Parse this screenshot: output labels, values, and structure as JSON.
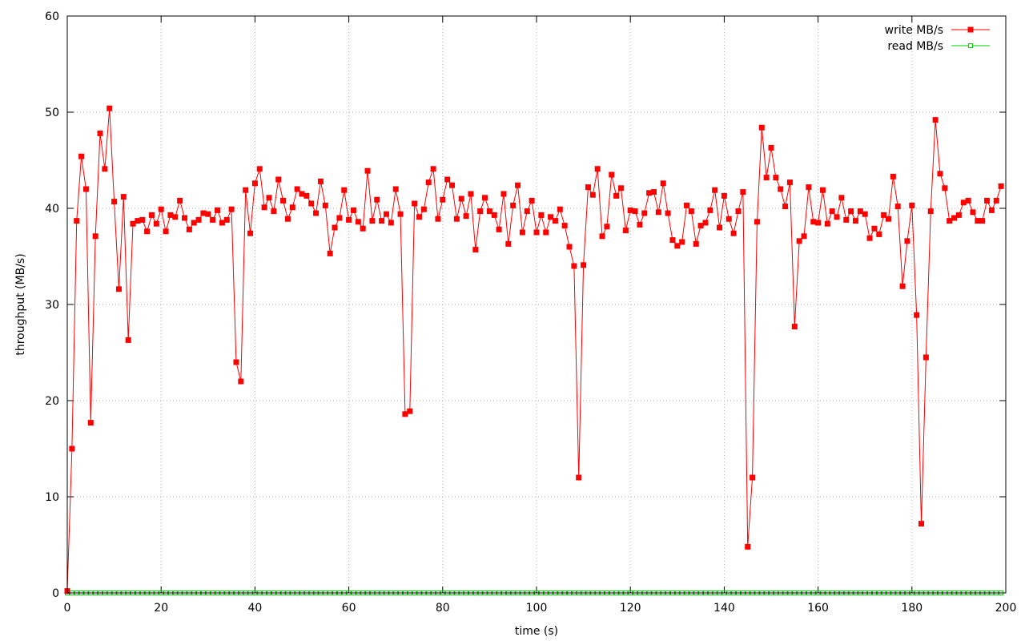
{
  "chart_data": {
    "type": "line",
    "title": "",
    "xlabel": "time (s)",
    "ylabel": "throughput (MB/s)",
    "xlim": [
      0,
      200
    ],
    "ylim": [
      0,
      60
    ],
    "xticks": [
      0,
      20,
      40,
      60,
      80,
      100,
      120,
      140,
      160,
      180,
      200
    ],
    "yticks": [
      0,
      10,
      20,
      30,
      40,
      50,
      60
    ],
    "grid": true,
    "legend_position": "top-right",
    "x": [
      0,
      1,
      2,
      3,
      4,
      5,
      6,
      7,
      8,
      9,
      10,
      11,
      12,
      13,
      14,
      15,
      16,
      17,
      18,
      19,
      20,
      21,
      22,
      23,
      24,
      25,
      26,
      27,
      28,
      29,
      30,
      31,
      32,
      33,
      34,
      35,
      36,
      37,
      38,
      39,
      40,
      41,
      42,
      43,
      44,
      45,
      46,
      47,
      48,
      49,
      50,
      51,
      52,
      53,
      54,
      55,
      56,
      57,
      58,
      59,
      60,
      61,
      62,
      63,
      64,
      65,
      66,
      67,
      68,
      69,
      70,
      71,
      72,
      73,
      74,
      75,
      76,
      77,
      78,
      79,
      80,
      81,
      82,
      83,
      84,
      85,
      86,
      87,
      88,
      89,
      90,
      91,
      92,
      93,
      94,
      95,
      96,
      97,
      98,
      99,
      100,
      101,
      102,
      103,
      104,
      105,
      106,
      107,
      108,
      109,
      110,
      111,
      112,
      113,
      114,
      115,
      116,
      117,
      118,
      119,
      120,
      121,
      122,
      123,
      124,
      125,
      126,
      127,
      128,
      129,
      130,
      131,
      132,
      133,
      134,
      135,
      136,
      137,
      138,
      139,
      140,
      141,
      142,
      143,
      144,
      145,
      146,
      147,
      148,
      149,
      150,
      151,
      152,
      153,
      154,
      155,
      156,
      157,
      158,
      159,
      160,
      161,
      162,
      163,
      164,
      165,
      166,
      167,
      168,
      169,
      170,
      171,
      172,
      173,
      174,
      175,
      176,
      177,
      178,
      179,
      180,
      181,
      182,
      183,
      184,
      185,
      186,
      187,
      188,
      189,
      190,
      191,
      192,
      193,
      194,
      195,
      196,
      197,
      198,
      199
    ],
    "series": [
      {
        "name": "write MB/s",
        "color": "#ff0000",
        "marker": "filled-square",
        "values": [
          0.2,
          15.0,
          38.7,
          45.4,
          42.0,
          17.7,
          37.1,
          47.8,
          44.1,
          50.4,
          40.7,
          31.6,
          41.2,
          26.3,
          38.4,
          38.7,
          38.8,
          37.6,
          39.3,
          38.4,
          39.9,
          37.6,
          39.3,
          39.1,
          40.8,
          39.0,
          37.8,
          38.5,
          38.8,
          39.5,
          39.4,
          38.8,
          39.8,
          38.5,
          38.8,
          39.9,
          24.0,
          22.0,
          41.9,
          37.4,
          42.6,
          44.1,
          40.1,
          41.1,
          39.7,
          43.0,
          40.8,
          38.9,
          40.1,
          42.0,
          41.5,
          41.3,
          40.5,
          39.5,
          42.8,
          40.3,
          35.3,
          38.0,
          39.0,
          41.9,
          38.8,
          39.8,
          38.6,
          37.9,
          43.9,
          38.7,
          40.9,
          38.7,
          39.4,
          38.5,
          42.0,
          39.4,
          18.6,
          18.9,
          40.5,
          39.1,
          39.9,
          42.7,
          44.1,
          38.9,
          40.9,
          43.0,
          42.4,
          38.9,
          41.0,
          39.2,
          41.5,
          35.7,
          39.7,
          41.1,
          39.7,
          39.3,
          37.8,
          41.5,
          36.3,
          40.3,
          42.4,
          37.5,
          39.7,
          40.8,
          37.5,
          39.3,
          37.5,
          39.1,
          38.7,
          39.9,
          38.2,
          36.0,
          34.0,
          12.0,
          34.1,
          42.2,
          41.4,
          44.1,
          37.1,
          38.1,
          43.5,
          41.3,
          42.1,
          37.7,
          39.8,
          39.7,
          38.3,
          39.5,
          41.6,
          41.7,
          39.6,
          42.6,
          39.5,
          36.7,
          36.1,
          36.5,
          40.3,
          39.7,
          36.3,
          38.2,
          38.5,
          39.8,
          41.9,
          38.0,
          41.3,
          38.9,
          37.4,
          39.7,
          41.7,
          4.8,
          12.0,
          38.6,
          48.4,
          43.2,
          46.3,
          43.2,
          42.0,
          40.2,
          42.7,
          27.7,
          36.6,
          37.1,
          42.2,
          38.6,
          38.5,
          41.9,
          38.4,
          39.7,
          39.1,
          41.1,
          38.8,
          39.7,
          38.7,
          39.7,
          39.4,
          36.9,
          37.9,
          37.3,
          39.3,
          38.9,
          43.3,
          40.2,
          31.9,
          36.6,
          40.3,
          28.9,
          7.2,
          24.5,
          39.7,
          49.2,
          43.6,
          42.1,
          38.7,
          39.0,
          39.3,
          40.6,
          40.8,
          39.6,
          38.7,
          38.7,
          40.8,
          39.8,
          40.8,
          42.3
        ]
      },
      {
        "name": "read MB/s",
        "color": "#00cc00",
        "marker": "open-square",
        "values": [
          0,
          0,
          0,
          0,
          0,
          0,
          0,
          0,
          0,
          0,
          0,
          0,
          0,
          0,
          0,
          0,
          0,
          0,
          0,
          0,
          0,
          0,
          0,
          0,
          0,
          0,
          0,
          0,
          0,
          0,
          0,
          0,
          0,
          0,
          0,
          0,
          0,
          0,
          0,
          0,
          0,
          0,
          0,
          0,
          0,
          0,
          0,
          0,
          0,
          0,
          0,
          0,
          0,
          0,
          0,
          0,
          0,
          0,
          0,
          0,
          0,
          0,
          0,
          0,
          0,
          0,
          0,
          0,
          0,
          0,
          0,
          0,
          0,
          0,
          0,
          0,
          0,
          0,
          0,
          0,
          0,
          0,
          0,
          0,
          0,
          0,
          0,
          0,
          0,
          0,
          0,
          0,
          0,
          0,
          0,
          0,
          0,
          0,
          0,
          0,
          0,
          0,
          0,
          0,
          0,
          0,
          0,
          0,
          0,
          0,
          0,
          0,
          0,
          0,
          0,
          0,
          0,
          0,
          0,
          0,
          0,
          0,
          0,
          0,
          0,
          0,
          0,
          0,
          0,
          0,
          0,
          0,
          0,
          0,
          0,
          0,
          0,
          0,
          0,
          0,
          0,
          0,
          0,
          0,
          0,
          0,
          0,
          0,
          0,
          0,
          0,
          0,
          0,
          0,
          0,
          0,
          0,
          0,
          0,
          0,
          0,
          0,
          0,
          0,
          0,
          0,
          0,
          0,
          0,
          0,
          0,
          0,
          0,
          0,
          0,
          0,
          0,
          0,
          0,
          0,
          0,
          0,
          0,
          0,
          0,
          0,
          0,
          0,
          0,
          0,
          0,
          0,
          0,
          0,
          0,
          0,
          0,
          0,
          0,
          0
        ]
      }
    ]
  }
}
